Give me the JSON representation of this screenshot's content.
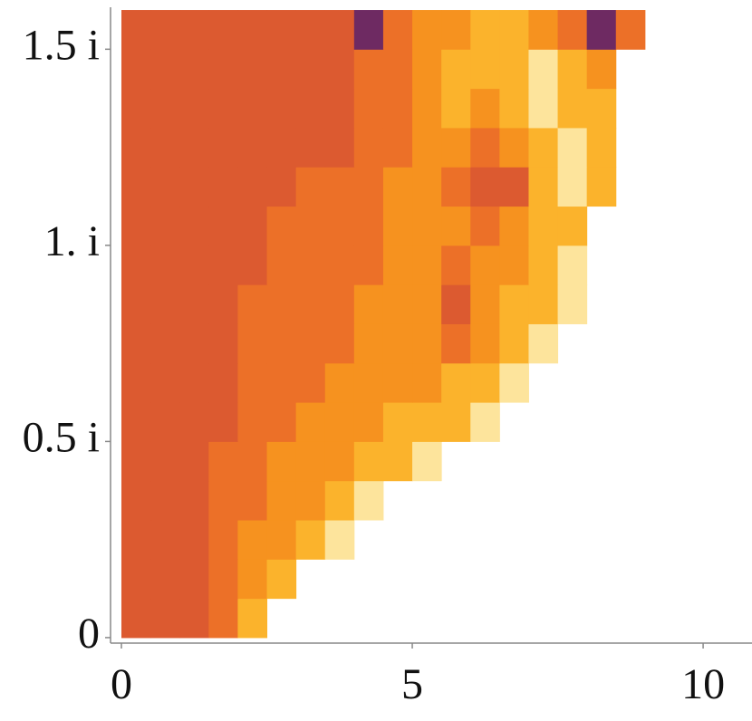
{
  "chart_data": {
    "type": "heatmap",
    "xlim": [
      -0.187,
      10.84
    ],
    "ylim": [
      -0.014,
      1.607
    ],
    "xticks": [
      0,
      5,
      10
    ],
    "yticks": [
      0,
      {
        "value": 0.5,
        "label": "0.5 i"
      },
      {
        "value": 1,
        "label": "1. i"
      },
      {
        "value": 1.5,
        "label": "1.5 i"
      }
    ],
    "colors": [
      "#6e2a62",
      "#dc5a30",
      "#ec7028",
      "#f6921f",
      "#fbb32c",
      "#fde49c"
    ],
    "x_bins": [
      0,
      0.5,
      1,
      1.5,
      2,
      2.5,
      3,
      3.5,
      4,
      4.5,
      5,
      5.5,
      6,
      6.5,
      7,
      7.5,
      8,
      8.5,
      9
    ],
    "y_bins": [
      0,
      0.1,
      0.2,
      0.3,
      0.4,
      0.5,
      0.6,
      0.7,
      0.8,
      0.9,
      1,
      1.1,
      1.2,
      1.3,
      1.4,
      1.5,
      1.6
    ],
    "z": [
      [
        1,
        1,
        1,
        2,
        4,
        null,
        null,
        null,
        null,
        null,
        null,
        null,
        null,
        null,
        null,
        null,
        null,
        null
      ],
      [
        1,
        1,
        1,
        2,
        3,
        4,
        null,
        null,
        null,
        null,
        null,
        null,
        null,
        null,
        null,
        null,
        null,
        null
      ],
      [
        1,
        1,
        1,
        2,
        3,
        3,
        4,
        5,
        null,
        null,
        null,
        null,
        null,
        null,
        null,
        null,
        null,
        null
      ],
      [
        1,
        1,
        1,
        2,
        2,
        3,
        3,
        4,
        5,
        null,
        null,
        null,
        null,
        null,
        null,
        null,
        null,
        null
      ],
      [
        1,
        1,
        1,
        2,
        2,
        3,
        3,
        3,
        4,
        4,
        5,
        null,
        null,
        null,
        null,
        null,
        null,
        null
      ],
      [
        1,
        1,
        1,
        1,
        2,
        2,
        3,
        3,
        3,
        4,
        4,
        4,
        5,
        null,
        null,
        null,
        null,
        null
      ],
      [
        1,
        1,
        1,
        1,
        2,
        2,
        2,
        3,
        3,
        3,
        3,
        4,
        4,
        5,
        null,
        null,
        null,
        null
      ],
      [
        1,
        1,
        1,
        1,
        2,
        2,
        2,
        2,
        3,
        3,
        3,
        2,
        3,
        4,
        5,
        null,
        null,
        null
      ],
      [
        1,
        1,
        1,
        1,
        2,
        2,
        2,
        2,
        3,
        3,
        3,
        1,
        3,
        4,
        4,
        5,
        null,
        null
      ],
      [
        1,
        1,
        1,
        1,
        1,
        2,
        2,
        2,
        2,
        3,
        3,
        2,
        3,
        3,
        4,
        5,
        null,
        null
      ],
      [
        1,
        1,
        1,
        1,
        1,
        2,
        2,
        2,
        2,
        3,
        3,
        3,
        2,
        3,
        4,
        4,
        null,
        null
      ],
      [
        1,
        1,
        1,
        1,
        1,
        1,
        2,
        2,
        2,
        3,
        3,
        2,
        1,
        1,
        4,
        5,
        4,
        null
      ],
      [
        1,
        1,
        1,
        1,
        1,
        1,
        1,
        1,
        2,
        2,
        3,
        3,
        2,
        3,
        4,
        5,
        4,
        null
      ],
      [
        1,
        1,
        1,
        1,
        1,
        1,
        1,
        1,
        2,
        2,
        3,
        4,
        3,
        4,
        5,
        4,
        4,
        null
      ],
      [
        1,
        1,
        1,
        1,
        1,
        1,
        1,
        1,
        2,
        2,
        3,
        4,
        4,
        4,
        5,
        4,
        3,
        null
      ],
      [
        1,
        1,
        1,
        1,
        1,
        1,
        1,
        1,
        0,
        2,
        3,
        3,
        4,
        4,
        3,
        2,
        0,
        2
      ]
    ]
  }
}
